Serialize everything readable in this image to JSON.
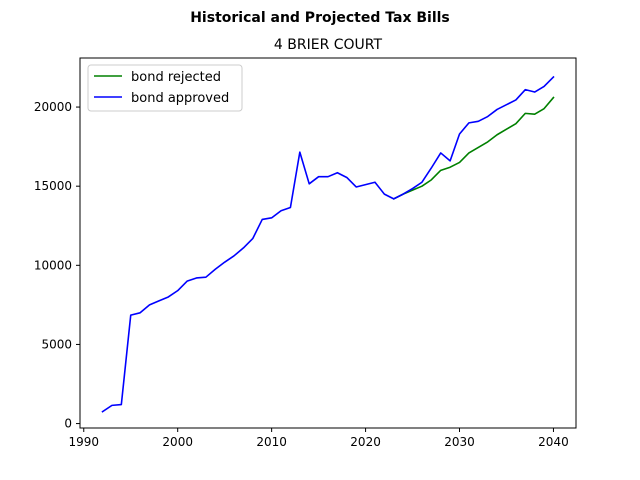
{
  "chart_data": {
    "type": "line",
    "suptitle": "Historical and Projected Tax Bills",
    "title": "4 BRIER COURT",
    "xlabel": "",
    "ylabel": "",
    "xlim": [
      1989.6,
      2042.4
    ],
    "ylim": [
      -280,
      23100
    ],
    "x_ticks": [
      1990,
      2000,
      2010,
      2020,
      2030,
      2040
    ],
    "y_ticks": [
      0,
      5000,
      10000,
      15000,
      20000
    ],
    "x_tick_labels": [
      "1990",
      "2000",
      "2010",
      "2020",
      "2030",
      "2040"
    ],
    "y_tick_labels": [
      "0",
      "5000",
      "10000",
      "15000",
      "20000"
    ],
    "grid": false,
    "legend_position": "upper-left",
    "series": [
      {
        "name": "bond rejected",
        "color": "#008000",
        "x": [
          2023,
          2024,
          2025,
          2026,
          2027,
          2028,
          2029,
          2030,
          2031,
          2032,
          2033,
          2034,
          2035,
          2036,
          2037,
          2038,
          2039,
          2040
        ],
        "y": [
          14200,
          14500,
          14750,
          15000,
          15400,
          16000,
          16200,
          16500,
          17100,
          17450,
          17800,
          18250,
          18600,
          18950,
          19600,
          19550,
          19900,
          20600
        ]
      },
      {
        "name": "bond approved",
        "color": "#0000ff",
        "x": [
          1992,
          1993,
          1994,
          1995,
          1996,
          1997,
          1998,
          1999,
          2000,
          2001,
          2002,
          2003,
          2004,
          2005,
          2006,
          2007,
          2008,
          2009,
          2010,
          2011,
          2012,
          2013,
          2014,
          2015,
          2016,
          2017,
          2018,
          2019,
          2020,
          2021,
          2022,
          2023,
          2024,
          2025,
          2026,
          2027,
          2028,
          2029,
          2030,
          2031,
          2032,
          2033,
          2034,
          2035,
          2036,
          2037,
          2038,
          2039,
          2040
        ],
        "y": [
          750,
          1150,
          1200,
          6850,
          7000,
          7500,
          7750,
          8000,
          8400,
          9000,
          9200,
          9250,
          9750,
          10200,
          10600,
          11100,
          11700,
          12900,
          13000,
          13450,
          13650,
          17150,
          15150,
          15600,
          15600,
          15850,
          15550,
          14950,
          15100,
          15250,
          14500,
          14200,
          14500,
          14850,
          15250,
          16150,
          17100,
          16600,
          18300,
          19000,
          19100,
          19400,
          19850,
          20150,
          20450,
          21100,
          20950,
          21300,
          21900
        ]
      }
    ]
  }
}
